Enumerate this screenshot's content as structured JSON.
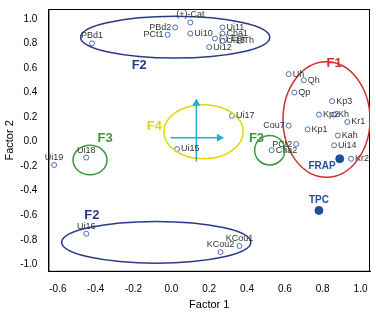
{
  "chart_data": {
    "type": "scatter",
    "x_label": "Factor 1",
    "y_label": "Factor 2",
    "xlim": [
      -0.65,
      1.05
    ],
    "ylim": [
      -1.06,
      1.08
    ],
    "xticks": [
      -0.6,
      -0.4,
      -0.2,
      {
        "value": 0,
        "label": "0.0"
      },
      0.2,
      0.4,
      0.6,
      0.8,
      {
        "value": 1,
        "label": "1.0"
      }
    ],
    "yticks": [
      {
        "value": -1,
        "label": "-1.0"
      },
      -0.8,
      -0.6,
      -0.4,
      -0.2,
      {
        "value": 0,
        "label": "0.0"
      },
      0.2,
      0.4,
      0.6,
      0.8,
      {
        "value": 1,
        "label": "1.0"
      }
    ],
    "grid": false,
    "series": [
      {
        "marker": "open_circle",
        "color": "#4a6fb5",
        "labels": [
          "PBd1",
          "PBd2",
          "(+)-Cat",
          "PCt1",
          "Ui10",
          "Ui11",
          "Cha1",
          "(-)-Epi",
          "Th",
          "Ui13",
          "Ui12",
          "Uh",
          "Qh",
          "Qp",
          "Kp3",
          "Kh",
          "Kp2",
          "Kr1",
          "Cou7",
          "Kp1",
          "Kah",
          "PCt2",
          "Ui14",
          "Kr2",
          "Ui17",
          "Ui15",
          "Cha2",
          "Ui19",
          "Ui18",
          "Ui16",
          "KCou2",
          "KCou1"
        ],
        "x": [
          -0.42,
          0.02,
          0.1,
          -0.02,
          0.1,
          0.27,
          0.27,
          0.23,
          0.36,
          0.27,
          0.2,
          0.62,
          0.7,
          0.65,
          0.85,
          0.86,
          0.78,
          0.93,
          0.62,
          0.72,
          0.88,
          0.66,
          0.86,
          0.95,
          0.32,
          0.03,
          0.53,
          -0.62,
          -0.45,
          -0.45,
          0.26,
          0.36
        ],
        "values": [
          0.8,
          0.93,
          0.97,
          0.87,
          0.88,
          0.93,
          0.88,
          0.84,
          0.82,
          0.82,
          0.77,
          0.55,
          0.5,
          0.4,
          0.33,
          0.22,
          0.22,
          0.16,
          0.13,
          0.1,
          0.05,
          -0.02,
          -0.03,
          -0.14,
          0.21,
          -0.06,
          -0.07,
          -0.19,
          -0.13,
          -0.75,
          -0.9,
          -0.85
        ]
      },
      {
        "marker": "filled_circle",
        "color": "#1f4e9c",
        "labels": [
          "FRAP",
          "TPC"
        ],
        "x": [
          0.89,
          0.78
        ],
        "values": [
          -0.14,
          -0.56
        ]
      }
    ],
    "annotations": [
      {
        "text": "F1",
        "color": "#d03030",
        "center": [
          0.82,
          0.18
        ],
        "radii": [
          0.23,
          0.47
        ],
        "text_at": [
          0.86,
          0.64
        ]
      },
      {
        "text": "F2",
        "color": "#2a3a8a",
        "center": [
          0.02,
          0.85
        ],
        "radii": [
          0.5,
          0.17
        ],
        "text_at": [
          -0.17,
          0.62
        ]
      },
      {
        "text": "F2",
        "color": "#2a3a8a",
        "center": [
          -0.08,
          -0.82
        ],
        "radii": [
          0.5,
          0.17
        ],
        "text_at": [
          -0.42,
          -0.6
        ]
      },
      {
        "text": "F3",
        "color": "#3a9a3a",
        "center": [
          -0.43,
          -0.15
        ],
        "radii": [
          0.09,
          0.12
        ],
        "text_at": [
          -0.35,
          0.03
        ]
      },
      {
        "text": "F3",
        "color": "#3a9a3a",
        "center": [
          0.52,
          -0.07
        ],
        "radii": [
          0.08,
          0.12
        ],
        "text_at": [
          0.45,
          0.03
        ]
      },
      {
        "text": "F4",
        "color": "#e0d800",
        "center": [
          0.17,
          0.08
        ],
        "radii": [
          0.21,
          0.22
        ],
        "text_at": [
          -0.09,
          0.12
        ]
      }
    ]
  }
}
